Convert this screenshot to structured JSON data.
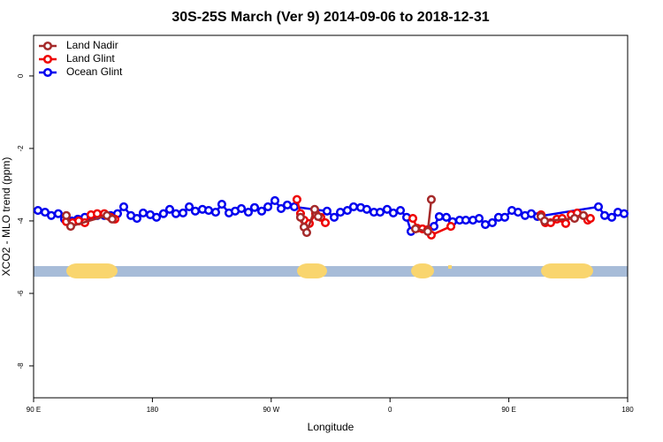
{
  "chart_data": {
    "type": "line",
    "title": "30S-25S March (Ver 9)   2014-09-06 to 2018-12-31",
    "x_label": "Longitude",
    "y_label": "XCO2 - MLO trend (ppm)",
    "xlim": [
      90,
      540
    ],
    "ylim": [
      -8.88,
      1.12
    ],
    "xticks": [
      {
        "value": 90,
        "label": "90 E"
      },
      {
        "value": 180,
        "label": "180"
      },
      {
        "value": 270,
        "label": "90 W"
      },
      {
        "value": 360,
        "label": "0"
      },
      {
        "value": 450,
        "label": "90 E"
      },
      {
        "value": 540,
        "label": "180"
      }
    ],
    "yticks": [
      -8,
      -6,
      -4,
      -2,
      0
    ],
    "legend": "top-left",
    "series": [
      {
        "name": "Land Nadir",
        "color": "#a52a2a",
        "x": [
          114.8,
          118.1,
          145.6,
          149.6,
          null,
          292.2,
          294.9,
          296.9,
          302.9,
          305.6,
          null,
          379.3,
          388.6,
          391.3,
          null,
          474.4,
          477.1,
          499.8,
          506.5
        ],
        "values": [
          -3.85,
          -4.15,
          -3.85,
          -3.95,
          null,
          -3.9,
          -4.17,
          -4.32,
          -3.68,
          -3.88,
          null,
          -4.22,
          -4.29,
          -3.41,
          null,
          -3.88,
          -4.0,
          -3.93,
          -3.85
        ]
      },
      {
        "name": "Land Glint",
        "color": "#ee0000",
        "x": [
          114.8,
          119.5,
          124.2,
          128.8,
          133.5,
          138.2,
          143.6,
          148.3,
          151.6,
          null,
          289.5,
          292.2,
          294.9,
          298.9,
          303.6,
          307.6,
          311.0,
          null,
          377.3,
          380.6,
          384.6,
          388.6,
          391.3,
          406.1,
          null,
          474.4,
          477.7,
          481.7,
          486.4,
          490.4,
          493.1,
          497.2,
          501.8,
          506.5,
          509.8,
          511.8
        ],
        "values": [
          -4.02,
          -4.05,
          -4.0,
          -4.05,
          -3.83,
          -3.8,
          -3.8,
          -3.9,
          -3.95,
          null,
          -3.41,
          -3.8,
          -3.98,
          -4.07,
          -3.8,
          -3.9,
          -4.05,
          null,
          -3.93,
          -4.2,
          -4.22,
          -4.24,
          -4.39,
          -4.15,
          null,
          -3.83,
          -4.05,
          -4.05,
          -3.95,
          -3.93,
          -4.07,
          -3.83,
          -3.78,
          -3.85,
          -3.98,
          -3.93
        ]
      },
      {
        "name": "Ocean Glint",
        "color": "#0000ee",
        "x": [
          93.3,
          98.7,
          103.4,
          108.7,
          113.4,
          118.8,
          123.5,
          128.8,
          133.5,
          138.2,
          143.6,
          148.3,
          153.6,
          158.3,
          163.7,
          168.3,
          173.0,
          178.4,
          183.1,
          188.4,
          193.1,
          197.8,
          203.2,
          207.9,
          212.5,
          217.9,
          222.6,
          227.9,
          232.6,
          238.0,
          242.7,
          247.4,
          252.7,
          257.4,
          262.8,
          267.5,
          272.8,
          277.5,
          282.2,
          287.5,
          312.3,
          317.7,
          322.4,
          327.7,
          332.4,
          337.8,
          342.4,
          347.8,
          352.5,
          357.8,
          362.5,
          367.9,
          372.6,
          375.9,
          393.3,
          397.3,
          402.7,
          407.4,
          412.7,
          417.4,
          422.8,
          427.5,
          432.2,
          437.5,
          442.2,
          446.9,
          452.3,
          457.0,
          462.3,
          467.0,
          471.7,
          517.9,
          522.6,
          528.0,
          532.6,
          537.3
        ],
        "values": [
          -3.71,
          -3.76,
          -3.85,
          -3.8,
          -3.95,
          -4.0,
          -3.95,
          -3.9,
          -3.88,
          -3.85,
          -3.85,
          -3.85,
          -3.8,
          -3.61,
          -3.85,
          -3.93,
          -3.78,
          -3.83,
          -3.9,
          -3.8,
          -3.68,
          -3.8,
          -3.78,
          -3.61,
          -3.73,
          -3.68,
          -3.71,
          -3.76,
          -3.54,
          -3.78,
          -3.73,
          -3.66,
          -3.76,
          -3.63,
          -3.73,
          -3.61,
          -3.44,
          -3.66,
          -3.56,
          -3.61,
          -3.73,
          -3.9,
          -3.76,
          -3.71,
          -3.61,
          -3.63,
          -3.68,
          -3.76,
          -3.76,
          -3.68,
          -3.78,
          -3.71,
          -3.9,
          -4.29,
          -4.15,
          -3.88,
          -3.9,
          -4.02,
          -3.98,
          -3.98,
          -3.98,
          -3.93,
          -4.1,
          -4.05,
          -3.9,
          -3.9,
          -3.71,
          -3.76,
          -3.85,
          -3.8,
          -3.88,
          -3.61,
          -3.85,
          -3.9,
          -3.76,
          -3.8
        ]
      }
    ]
  }
}
